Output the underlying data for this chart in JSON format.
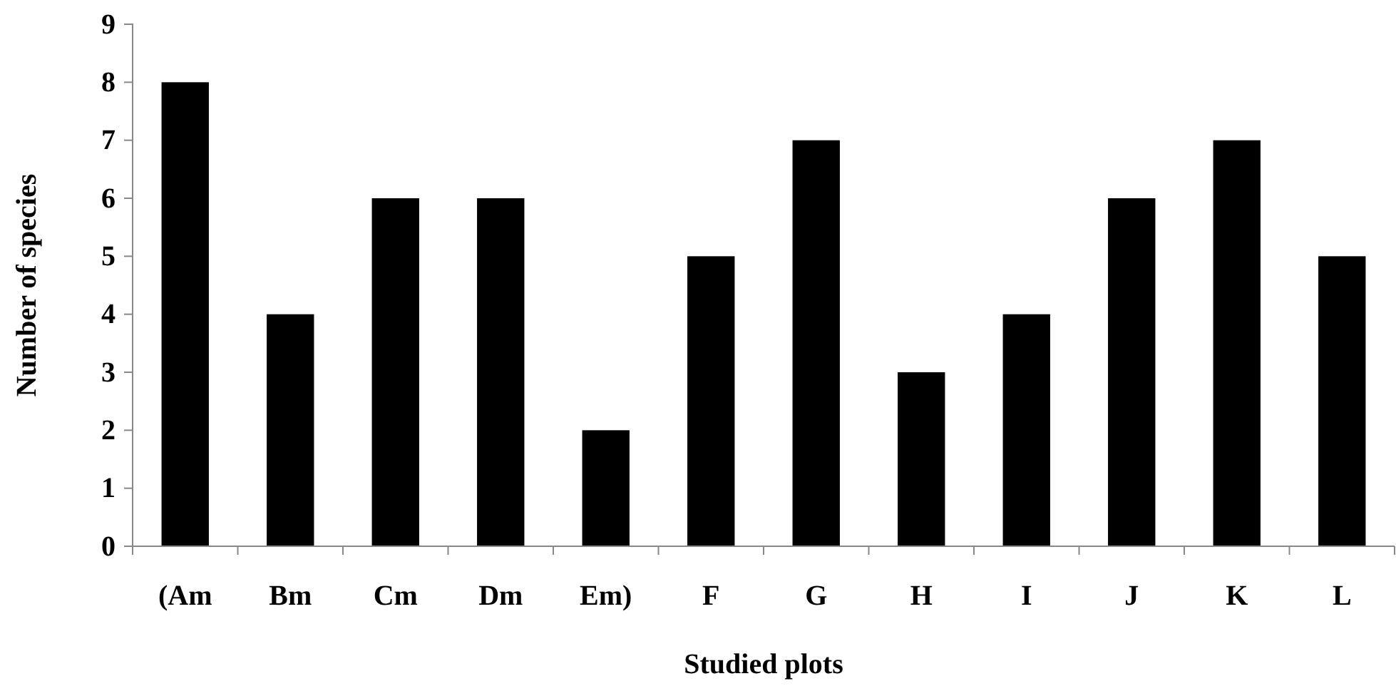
{
  "chart_data": {
    "type": "bar",
    "xlabel": "Studied plots",
    "ylabel": "Number of species",
    "categories": [
      "(Am",
      "Bm",
      "Cm",
      "Dm",
      "Em)",
      "F",
      "G",
      "H",
      "I",
      "J",
      "K",
      "L"
    ],
    "values": [
      8,
      4,
      6,
      6,
      2,
      5,
      7,
      3,
      4,
      6,
      7,
      5
    ],
    "color": "#000000",
    "ylim": [
      0,
      9
    ],
    "yticks": [
      0,
      1,
      2,
      3,
      4,
      5,
      6,
      7,
      8,
      9
    ],
    "grid": false
  }
}
